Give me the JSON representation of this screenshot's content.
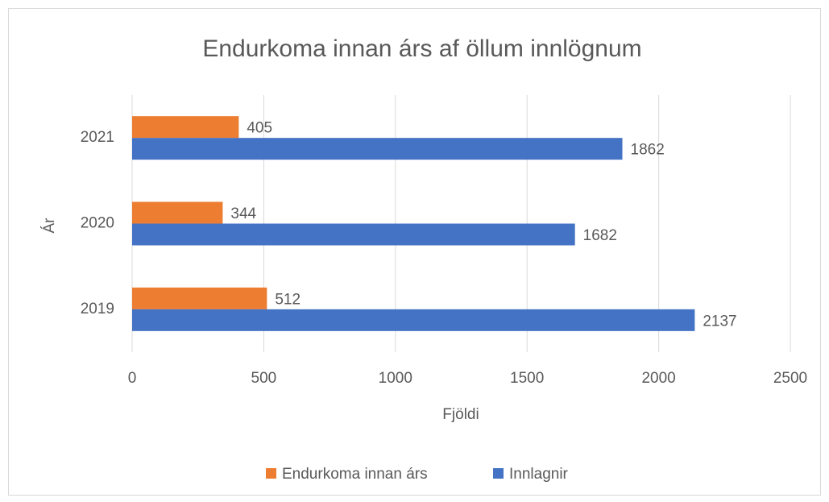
{
  "chart_data": {
    "type": "bar",
    "orientation": "horizontal",
    "title": "Endurkoma innan árs af öllum innlögnum",
    "x_label": "Fjöldi",
    "y_label": "Ár",
    "categories": [
      "2019",
      "2020",
      "2021"
    ],
    "series": [
      {
        "name": "Endurkoma innan árs",
        "color": "#ED7D31",
        "values": [
          512,
          344,
          405
        ]
      },
      {
        "name": "Innlagnir",
        "color": "#4472C4",
        "values": [
          2137,
          1682,
          1862
        ]
      }
    ],
    "xlim": [
      0,
      2500
    ],
    "xticks": [
      0,
      500,
      1000,
      1500,
      2000,
      2500
    ],
    "grid": true,
    "legend": "bottom"
  }
}
